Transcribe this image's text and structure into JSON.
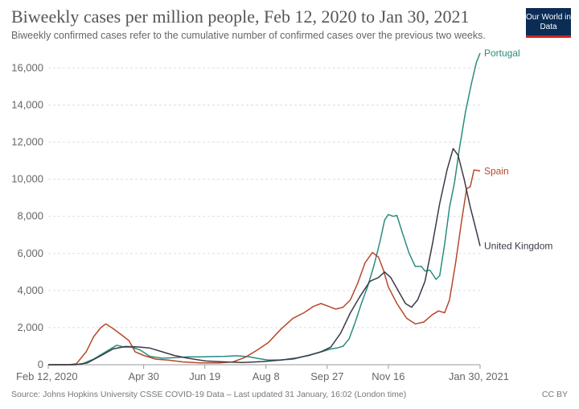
{
  "header": {
    "title": "Biweekly cases per million people, Feb 12, 2020 to Jan 30, 2021",
    "subtitle": "Biweekly confirmed cases refer to the cumulative number of confirmed cases over the previous two weeks.",
    "logo": "Our World in Data"
  },
  "footer": {
    "source": "Source: Johns Hopkins University CSSE COVID-19 Data – Last updated 31 January, 16:02 (London time)",
    "license": "CC BY"
  },
  "colors": {
    "portugal": "#2a8c7c",
    "spain": "#b6482b",
    "uk": "#3a3a4a",
    "grid": "#dddddd",
    "logo_bg": "#0b2c55",
    "logo_accent": "#ce261e"
  },
  "chart_data": {
    "type": "line",
    "title": "Biweekly cases per million people, Feb 12, 2020 to Jan 30, 2021",
    "xlabel": "",
    "ylabel": "",
    "xlim": [
      "2020-02-12",
      "2021-01-30"
    ],
    "ylim": [
      0,
      16800
    ],
    "y_ticks": [
      0,
      2000,
      4000,
      6000,
      8000,
      10000,
      12000,
      14000,
      16000
    ],
    "y_tick_labels": [
      "0",
      "2,000",
      "4,000",
      "6,000",
      "8,000",
      "10,000",
      "12,000",
      "14,000",
      "16,000"
    ],
    "x_ticks": [
      "2020-02-12",
      "2020-04-30",
      "2020-06-19",
      "2020-08-08",
      "2020-09-27",
      "2020-11-16",
      "2021-01-30"
    ],
    "x_tick_labels": [
      "Feb 12, 2020",
      "Apr 30",
      "Jun 19",
      "Aug 8",
      "Sep 27",
      "Nov 16",
      "Jan 30, 2021"
    ],
    "grid": "horizontal dashed",
    "legend": "inline labels at line ends",
    "series": [
      {
        "name": "Portugal",
        "color": "#2a8c7c",
        "points": [
          [
            "2020-02-12",
            0
          ],
          [
            "2020-03-01",
            0
          ],
          [
            "2020-03-10",
            20
          ],
          [
            "2020-03-20",
            300
          ],
          [
            "2020-03-30",
            700
          ],
          [
            "2020-04-08",
            1050
          ],
          [
            "2020-04-14",
            950
          ],
          [
            "2020-04-20",
            950
          ],
          [
            "2020-04-27",
            800
          ],
          [
            "2020-05-05",
            450
          ],
          [
            "2020-05-15",
            350
          ],
          [
            "2020-05-25",
            380
          ],
          [
            "2020-06-05",
            420
          ],
          [
            "2020-06-15",
            420
          ],
          [
            "2020-06-25",
            440
          ],
          [
            "2020-07-05",
            450
          ],
          [
            "2020-07-15",
            480
          ],
          [
            "2020-07-25",
            430
          ],
          [
            "2020-08-02",
            330
          ],
          [
            "2020-08-10",
            250
          ],
          [
            "2020-08-20",
            260
          ],
          [
            "2020-08-30",
            300
          ],
          [
            "2020-09-10",
            480
          ],
          [
            "2020-09-20",
            650
          ],
          [
            "2020-09-30",
            850
          ],
          [
            "2020-10-05",
            900
          ],
          [
            "2020-10-10",
            1000
          ],
          [
            "2020-10-15",
            1400
          ],
          [
            "2020-10-20",
            2300
          ],
          [
            "2020-10-25",
            3300
          ],
          [
            "2020-10-30",
            4200
          ],
          [
            "2020-11-04",
            5300
          ],
          [
            "2020-11-09",
            6600
          ],
          [
            "2020-11-13",
            7800
          ],
          [
            "2020-11-16",
            8100
          ],
          [
            "2020-11-20",
            8000
          ],
          [
            "2020-11-23",
            8050
          ],
          [
            "2020-11-28",
            7000
          ],
          [
            "2020-12-03",
            6000
          ],
          [
            "2020-12-08",
            5300
          ],
          [
            "2020-12-13",
            5300
          ],
          [
            "2020-12-16",
            5050
          ],
          [
            "2020-12-20",
            5100
          ],
          [
            "2020-12-25",
            4600
          ],
          [
            "2020-12-28",
            4800
          ],
          [
            "2021-01-01",
            6500
          ],
          [
            "2021-01-05",
            8500
          ],
          [
            "2021-01-09",
            9800
          ],
          [
            "2021-01-13",
            11600
          ],
          [
            "2021-01-18",
            13600
          ],
          [
            "2021-01-23",
            15200
          ],
          [
            "2021-01-27",
            16300
          ],
          [
            "2021-01-30",
            16800
          ]
        ]
      },
      {
        "name": "Spain",
        "color": "#b6482b",
        "points": [
          [
            "2020-02-12",
            0
          ],
          [
            "2020-02-29",
            0
          ],
          [
            "2020-03-06",
            50
          ],
          [
            "2020-03-14",
            700
          ],
          [
            "2020-03-20",
            1500
          ],
          [
            "2020-03-26",
            2000
          ],
          [
            "2020-03-30",
            2200
          ],
          [
            "2020-04-05",
            1950
          ],
          [
            "2020-04-12",
            1600
          ],
          [
            "2020-04-18",
            1300
          ],
          [
            "2020-04-23",
            700
          ],
          [
            "2020-04-30",
            500
          ],
          [
            "2020-05-10",
            300
          ],
          [
            "2020-05-20",
            250
          ],
          [
            "2020-06-01",
            150
          ],
          [
            "2020-06-15",
            100
          ],
          [
            "2020-07-01",
            100
          ],
          [
            "2020-07-12",
            150
          ],
          [
            "2020-07-22",
            400
          ],
          [
            "2020-08-01",
            800
          ],
          [
            "2020-08-10",
            1200
          ],
          [
            "2020-08-20",
            1900
          ],
          [
            "2020-08-30",
            2500
          ],
          [
            "2020-09-08",
            2800
          ],
          [
            "2020-09-16",
            3150
          ],
          [
            "2020-09-22",
            3300
          ],
          [
            "2020-09-28",
            3150
          ],
          [
            "2020-10-04",
            3000
          ],
          [
            "2020-10-10",
            3100
          ],
          [
            "2020-10-16",
            3500
          ],
          [
            "2020-10-22",
            4400
          ],
          [
            "2020-10-28",
            5500
          ],
          [
            "2020-11-03",
            6050
          ],
          [
            "2020-11-08",
            5800
          ],
          [
            "2020-11-12",
            5100
          ],
          [
            "2020-11-16",
            4200
          ],
          [
            "2020-11-23",
            3300
          ],
          [
            "2020-12-01",
            2500
          ],
          [
            "2020-12-08",
            2200
          ],
          [
            "2020-12-15",
            2300
          ],
          [
            "2020-12-22",
            2700
          ],
          [
            "2020-12-27",
            2900
          ],
          [
            "2021-01-01",
            2800
          ],
          [
            "2021-01-05",
            3500
          ],
          [
            "2021-01-10",
            5500
          ],
          [
            "2021-01-15",
            7800
          ],
          [
            "2021-01-19",
            9500
          ],
          [
            "2021-01-22",
            9600
          ],
          [
            "2021-01-25",
            10500
          ],
          [
            "2021-01-30",
            10450
          ]
        ]
      },
      {
        "name": "United Kingdom",
        "color": "#3a3a4a",
        "points": [
          [
            "2020-02-12",
            0
          ],
          [
            "2020-03-05",
            0
          ],
          [
            "2020-03-15",
            100
          ],
          [
            "2020-03-25",
            450
          ],
          [
            "2020-04-05",
            850
          ],
          [
            "2020-04-15",
            980
          ],
          [
            "2020-04-25",
            960
          ],
          [
            "2020-05-05",
            900
          ],
          [
            "2020-05-15",
            700
          ],
          [
            "2020-05-25",
            500
          ],
          [
            "2020-06-05",
            350
          ],
          [
            "2020-06-20",
            200
          ],
          [
            "2020-07-05",
            150
          ],
          [
            "2020-07-20",
            120
          ],
          [
            "2020-08-05",
            170
          ],
          [
            "2020-08-20",
            250
          ],
          [
            "2020-09-01",
            350
          ],
          [
            "2020-09-12",
            500
          ],
          [
            "2020-09-22",
            700
          ],
          [
            "2020-09-30",
            950
          ],
          [
            "2020-10-08",
            1700
          ],
          [
            "2020-10-16",
            2800
          ],
          [
            "2020-10-24",
            3700
          ],
          [
            "2020-11-01",
            4500
          ],
          [
            "2020-11-08",
            4700
          ],
          [
            "2020-11-13",
            5000
          ],
          [
            "2020-11-18",
            4700
          ],
          [
            "2020-11-24",
            4000
          ],
          [
            "2020-11-30",
            3300
          ],
          [
            "2020-12-05",
            3100
          ],
          [
            "2020-12-10",
            3500
          ],
          [
            "2020-12-16",
            4500
          ],
          [
            "2020-12-22",
            6500
          ],
          [
            "2020-12-28",
            8700
          ],
          [
            "2021-01-03",
            10500
          ],
          [
            "2021-01-08",
            11650
          ],
          [
            "2021-01-12",
            11300
          ],
          [
            "2021-01-17",
            10000
          ],
          [
            "2021-01-22",
            8500
          ],
          [
            "2021-01-27",
            7200
          ],
          [
            "2021-01-30",
            6400
          ]
        ]
      }
    ]
  }
}
